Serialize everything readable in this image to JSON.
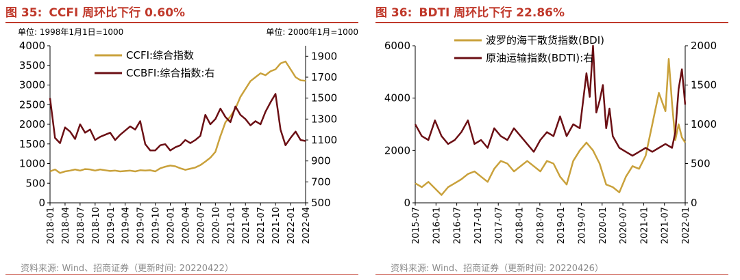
{
  "charts": [
    {
      "figure_label": "图 35:",
      "title": "CCFI 周环比下行 0.60%",
      "unit_left": "单位: 1998年1月1日=1000",
      "unit_right": "单位: 2000年1月=1000",
      "source": "资料来源: Wind、招商证券（更新时间: 20220422）",
      "accent": "#c0392b"
    },
    {
      "figure_label": "图 36:",
      "title": "BDTI 周环比下行 22.86%",
      "source": "资料来源: Wind、招商证券（更新时间: 20220426）",
      "accent": "#c0392b"
    }
  ],
  "chart_data": [
    {
      "type": "line",
      "x_ticks": [
        "2018-01",
        "2018-04",
        "2018-07",
        "2018-10",
        "2019-01",
        "2019-04",
        "2019-07",
        "2019-10",
        "2020-01",
        "2020-04",
        "2020-07",
        "2020-10",
        "2021-01",
        "2021-04",
        "2021-07",
        "2021-10",
        "2022-01",
        "2022-04"
      ],
      "x_range": [
        0,
        51
      ],
      "y_left": {
        "min": 0,
        "max": 4000,
        "ticks": [
          0,
          500,
          1000,
          1500,
          2000,
          2500,
          3000,
          3500,
          4000
        ]
      },
      "y_right": {
        "min": 500,
        "max": 2000,
        "ticks": [
          500,
          700,
          900,
          1100,
          1300,
          1500,
          1700,
          1900
        ]
      },
      "legend_position": "top-center",
      "series": [
        {
          "name": "CCFI:综合指数",
          "axis": "left",
          "color": "#c9a13b",
          "points": [
            [
              0,
              800
            ],
            [
              1,
              850
            ],
            [
              2,
              760
            ],
            [
              3,
              800
            ],
            [
              4,
              820
            ],
            [
              5,
              850
            ],
            [
              6,
              820
            ],
            [
              7,
              860
            ],
            [
              8,
              850
            ],
            [
              9,
              820
            ],
            [
              10,
              850
            ],
            [
              11,
              830
            ],
            [
              12,
              810
            ],
            [
              13,
              820
            ],
            [
              14,
              800
            ],
            [
              15,
              810
            ],
            [
              16,
              820
            ],
            [
              17,
              800
            ],
            [
              18,
              830
            ],
            [
              19,
              820
            ],
            [
              20,
              830
            ],
            [
              21,
              800
            ],
            [
              22,
              880
            ],
            [
              23,
              920
            ],
            [
              24,
              950
            ],
            [
              25,
              930
            ],
            [
              26,
              880
            ],
            [
              27,
              840
            ],
            [
              28,
              870
            ],
            [
              29,
              900
            ],
            [
              30,
              960
            ],
            [
              31,
              1050
            ],
            [
              32,
              1150
            ],
            [
              33,
              1300
            ],
            [
              34,
              1700
            ],
            [
              35,
              2050
            ],
            [
              36,
              2200
            ],
            [
              37,
              2400
            ],
            [
              38,
              2700
            ],
            [
              39,
              2900
            ],
            [
              40,
              3100
            ],
            [
              41,
              3200
            ],
            [
              42,
              3300
            ],
            [
              43,
              3250
            ],
            [
              44,
              3350
            ],
            [
              45,
              3400
            ],
            [
              46,
              3550
            ],
            [
              47,
              3600
            ],
            [
              48,
              3400
            ],
            [
              49,
              3200
            ],
            [
              50,
              3120
            ],
            [
              51,
              3110
            ]
          ]
        },
        {
          "name": "CCBFI:综合指数:右",
          "axis": "right",
          "color": "#6b0f14",
          "points": [
            [
              0,
              1500
            ],
            [
              1,
              1120
            ],
            [
              2,
              1070
            ],
            [
              3,
              1220
            ],
            [
              4,
              1180
            ],
            [
              5,
              1110
            ],
            [
              6,
              1250
            ],
            [
              7,
              1170
            ],
            [
              8,
              1200
            ],
            [
              9,
              1100
            ],
            [
              10,
              1130
            ],
            [
              11,
              1150
            ],
            [
              12,
              1170
            ],
            [
              13,
              1100
            ],
            [
              14,
              1150
            ],
            [
              15,
              1190
            ],
            [
              16,
              1230
            ],
            [
              17,
              1200
            ],
            [
              18,
              1280
            ],
            [
              19,
              1060
            ],
            [
              20,
              1000
            ],
            [
              21,
              1000
            ],
            [
              22,
              1050
            ],
            [
              23,
              1060
            ],
            [
              24,
              1000
            ],
            [
              25,
              1030
            ],
            [
              26,
              1050
            ],
            [
              27,
              1100
            ],
            [
              28,
              1070
            ],
            [
              29,
              1100
            ],
            [
              30,
              1140
            ],
            [
              31,
              1340
            ],
            [
              32,
              1250
            ],
            [
              33,
              1300
            ],
            [
              34,
              1400
            ],
            [
              35,
              1320
            ],
            [
              36,
              1270
            ],
            [
              37,
              1420
            ],
            [
              38,
              1340
            ],
            [
              39,
              1300
            ],
            [
              40,
              1240
            ],
            [
              41,
              1280
            ],
            [
              42,
              1250
            ],
            [
              43,
              1370
            ],
            [
              44,
              1460
            ],
            [
              45,
              1540
            ],
            [
              46,
              1200
            ],
            [
              47,
              1050
            ],
            [
              48,
              1120
            ],
            [
              49,
              1180
            ],
            [
              50,
              1100
            ],
            [
              51,
              1090
            ]
          ]
        }
      ]
    },
    {
      "type": "line",
      "x_ticks": [
        "2015-07",
        "2016-01",
        "2016-07",
        "2017-01",
        "2017-07",
        "2018-01",
        "2018-07",
        "2019-01",
        "2019-07",
        "2020-01",
        "2020-07",
        "2021-01",
        "2021-07",
        "2022-01"
      ],
      "x_range": [
        0,
        82
      ],
      "y_left": {
        "min": 0,
        "max": 6000,
        "ticks": [
          0,
          2000,
          4000,
          6000
        ]
      },
      "y_right": {
        "min": 0,
        "max": 2000,
        "ticks": [
          0,
          500,
          1000,
          1500,
          2000
        ]
      },
      "legend_position": "top-center",
      "series": [
        {
          "name": "波罗的海干散货指数(BDI)",
          "axis": "left",
          "color": "#c9a13b",
          "points": [
            [
              0,
              750
            ],
            [
              2,
              600
            ],
            [
              4,
              800
            ],
            [
              6,
              550
            ],
            [
              8,
              300
            ],
            [
              10,
              600
            ],
            [
              12,
              750
            ],
            [
              14,
              900
            ],
            [
              16,
              1100
            ],
            [
              18,
              1200
            ],
            [
              20,
              1000
            ],
            [
              22,
              800
            ],
            [
              24,
              1300
            ],
            [
              26,
              1600
            ],
            [
              28,
              1500
            ],
            [
              30,
              1200
            ],
            [
              32,
              1400
            ],
            [
              34,
              1600
            ],
            [
              36,
              1400
            ],
            [
              38,
              1200
            ],
            [
              40,
              1600
            ],
            [
              42,
              1500
            ],
            [
              44,
              1000
            ],
            [
              46,
              700
            ],
            [
              48,
              1600
            ],
            [
              50,
              2000
            ],
            [
              52,
              2300
            ],
            [
              54,
              2000
            ],
            [
              56,
              1500
            ],
            [
              58,
              700
            ],
            [
              60,
              600
            ],
            [
              62,
              400
            ],
            [
              64,
              1000
            ],
            [
              66,
              1400
            ],
            [
              68,
              1300
            ],
            [
              70,
              1800
            ],
            [
              72,
              3000
            ],
            [
              74,
              4200
            ],
            [
              76,
              3500
            ],
            [
              77,
              5500
            ],
            [
              78,
              3800
            ],
            [
              79,
              2400
            ],
            [
              80,
              3000
            ],
            [
              81,
              2500
            ],
            [
              82,
              2300
            ]
          ]
        },
        {
          "name": "原油运输指数(BDTI):右",
          "axis": "right",
          "color": "#6b0f14",
          "points": [
            [
              0,
              1000
            ],
            [
              2,
              850
            ],
            [
              4,
              800
            ],
            [
              6,
              1050
            ],
            [
              8,
              850
            ],
            [
              10,
              750
            ],
            [
              12,
              800
            ],
            [
              14,
              900
            ],
            [
              16,
              1050
            ],
            [
              18,
              750
            ],
            [
              20,
              800
            ],
            [
              22,
              700
            ],
            [
              24,
              950
            ],
            [
              26,
              850
            ],
            [
              28,
              800
            ],
            [
              30,
              950
            ],
            [
              32,
              850
            ],
            [
              34,
              750
            ],
            [
              36,
              650
            ],
            [
              38,
              800
            ],
            [
              40,
              900
            ],
            [
              42,
              850
            ],
            [
              44,
              1100
            ],
            [
              46,
              850
            ],
            [
              48,
              1000
            ],
            [
              50,
              950
            ],
            [
              52,
              1650
            ],
            [
              53,
              1350
            ],
            [
              54,
              2000
            ],
            [
              55,
              1150
            ],
            [
              56,
              1300
            ],
            [
              57,
              1500
            ],
            [
              58,
              950
            ],
            [
              59,
              1200
            ],
            [
              60,
              850
            ],
            [
              62,
              700
            ],
            [
              64,
              650
            ],
            [
              66,
              600
            ],
            [
              68,
              650
            ],
            [
              70,
              700
            ],
            [
              72,
              650
            ],
            [
              74,
              700
            ],
            [
              76,
              750
            ],
            [
              78,
              700
            ],
            [
              79,
              900
            ],
            [
              80,
              1450
            ],
            [
              81,
              1700
            ],
            [
              82,
              1250
            ]
          ]
        }
      ]
    }
  ]
}
